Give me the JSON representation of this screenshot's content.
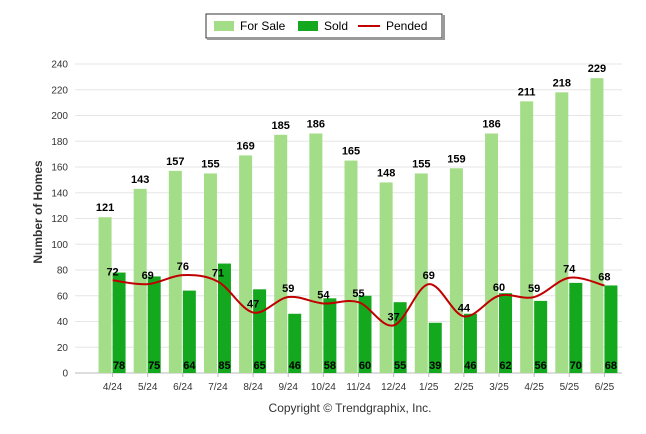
{
  "colors": {
    "for_sale": "#a3dd88",
    "sold": "#13a81d",
    "pended": "#c00000",
    "grid": "#e6e6e6"
  },
  "copyright": "Copyright © Trendgraphix, Inc.",
  "chart_data": {
    "type": "bar",
    "ylabel": "Number of Homes",
    "ylim": [
      0,
      240
    ],
    "yticks": [
      0,
      20,
      40,
      60,
      80,
      100,
      120,
      140,
      160,
      180,
      200,
      220,
      240
    ],
    "grid": true,
    "legend_placement": "top-center",
    "categories": [
      "4/24",
      "5/24",
      "6/24",
      "7/24",
      "8/24",
      "9/24",
      "10/24",
      "11/24",
      "12/24",
      "1/25",
      "2/25",
      "3/25",
      "4/25",
      "5/25",
      "6/25"
    ],
    "series": [
      {
        "name": "For Sale",
        "type": "bar",
        "values": [
          121,
          143,
          157,
          155,
          169,
          185,
          186,
          165,
          148,
          155,
          159,
          186,
          211,
          218,
          229
        ]
      },
      {
        "name": "Sold",
        "type": "bar",
        "values": [
          78,
          75,
          64,
          85,
          65,
          46,
          58,
          60,
          55,
          39,
          46,
          62,
          56,
          70,
          68
        ]
      },
      {
        "name": "Pended",
        "type": "line",
        "values": [
          72,
          69,
          76,
          71,
          47,
          59,
          54,
          55,
          37,
          69,
          44,
          60,
          59,
          74,
          68
        ]
      }
    ]
  }
}
